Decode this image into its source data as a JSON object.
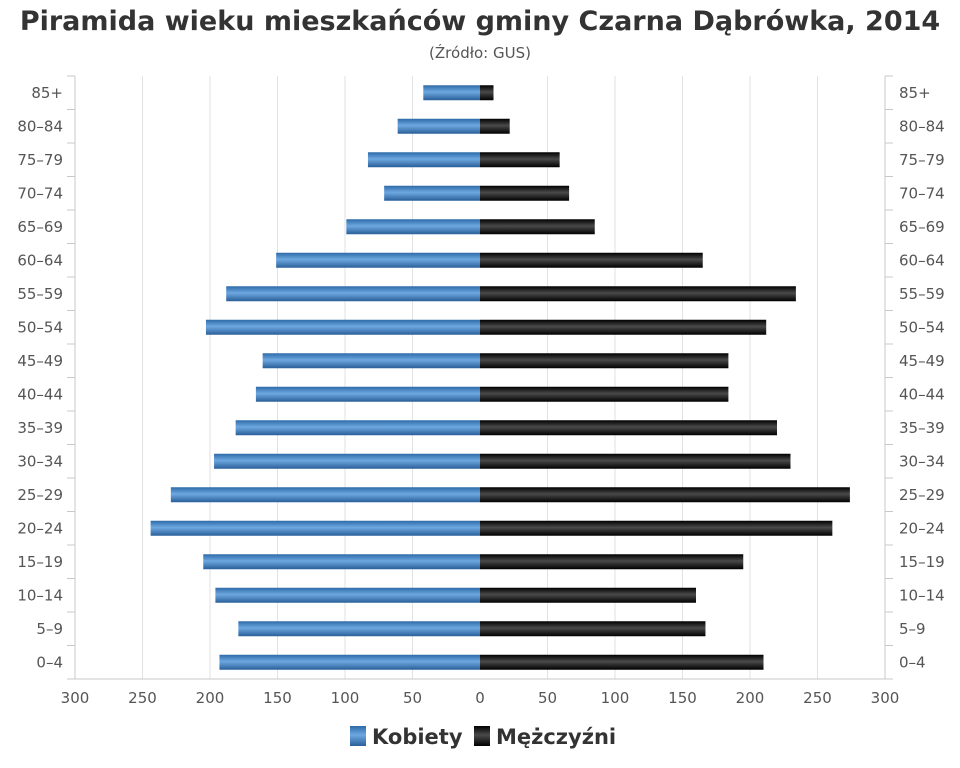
{
  "chart_data": {
    "type": "bar",
    "orientation": "horizontal-population-pyramid",
    "title": "Piramida wieku mieszkańców gminy Czarna Dąbrówka, 2014",
    "subtitle": "(Źródło: GUS)",
    "categories": [
      "85+",
      "80–84",
      "75–79",
      "70–74",
      "65–69",
      "60–64",
      "55–59",
      "50–54",
      "45–49",
      "40–44",
      "35–39",
      "30–34",
      "25–29",
      "20–24",
      "15–19",
      "10–14",
      "5–9",
      "0–4"
    ],
    "series": [
      {
        "name": "Kobiety",
        "color": "#3f7fc0",
        "side": "left",
        "values": [
          42,
          61,
          83,
          71,
          99,
          151,
          188,
          203,
          161,
          166,
          181,
          197,
          229,
          244,
          205,
          196,
          179,
          193
        ]
      },
      {
        "name": "Mężczyźni",
        "color": "#1a1a1a",
        "side": "right",
        "values": [
          10,
          22,
          59,
          66,
          85,
          165,
          234,
          212,
          184,
          184,
          220,
          230,
          274,
          261,
          195,
          160,
          167,
          210
        ]
      }
    ],
    "xlim": [
      -300,
      300
    ],
    "x_ticks": [
      300,
      250,
      200,
      150,
      100,
      50,
      0,
      50,
      100,
      150,
      200,
      250,
      300
    ],
    "grid": true,
    "legend": "bottom-center"
  }
}
